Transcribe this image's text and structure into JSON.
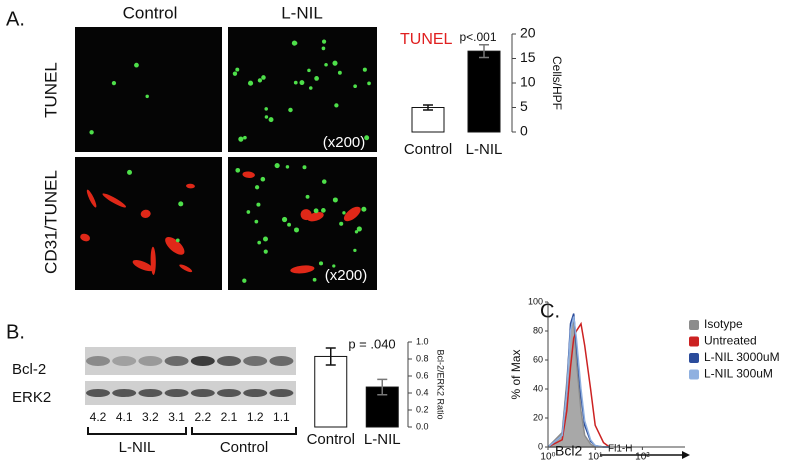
{
  "panel_a": {
    "label": "A.",
    "columns": [
      "Control",
      "L-NIL"
    ],
    "rows": [
      "TUNEL",
      "CD31/TUNEL"
    ],
    "magnification": "(x200)"
  },
  "panel_b": {
    "label": "B.",
    "rows": [
      "Bcl-2",
      "ERK2"
    ],
    "lanes": [
      "4.2",
      "4.1",
      "3.2",
      "3.1",
      "2.2",
      "2.1",
      "1.2",
      "1.1"
    ],
    "groups": [
      "L-NIL",
      "Control"
    ]
  },
  "panel_c": {
    "label": "C."
  },
  "chart_data": [
    {
      "type": "bar",
      "title": "TUNEL",
      "annotation": "p<.001",
      "ylabel": "Cells/HPF",
      "categories": [
        "Control",
        "L-NIL"
      ],
      "values": [
        5,
        16.5
      ],
      "errors": [
        0.5,
        1.3
      ],
      "colors": [
        "#ffffff",
        "#000000"
      ],
      "ylim": [
        0,
        20
      ],
      "yticks": [
        0,
        5,
        10,
        15,
        20
      ]
    },
    {
      "type": "bar",
      "annotation": "p = .040",
      "ylabel": "Bcl-2/ERK2 Ratio",
      "categories": [
        "Control",
        "L-NIL"
      ],
      "values": [
        0.83,
        0.47
      ],
      "errors": [
        0.1,
        0.09
      ],
      "colors": [
        "#ffffff",
        "#000000"
      ],
      "ylim": [
        0,
        1.0
      ],
      "yticks": [
        {
          "value": 0,
          "label": "0.0"
        },
        0.2,
        0.4,
        0.6,
        0.8,
        {
          "value": 1.0,
          "label": "1.0"
        }
      ]
    },
    {
      "type": "line",
      "ylabel": "% of Max",
      "x_name": "Bcl2",
      "xlabel": "Fl1-H",
      "xscale": "log",
      "xlim": [
        1,
        800
      ],
      "ylim": [
        0,
        100
      ],
      "xticks": [
        {
          "value": 1,
          "label": "10⁰"
        },
        {
          "value": 10,
          "label": "10¹"
        },
        {
          "value": 100,
          "label": "10²"
        }
      ],
      "yticks": [
        0,
        20,
        40,
        60,
        80,
        100
      ],
      "x": [
        1,
        2,
        2.5,
        3,
        3.5,
        4,
        5,
        6,
        8,
        10,
        15,
        20
      ],
      "series": [
        {
          "name": "Isotype",
          "color": "#8c8c8c",
          "fill": true,
          "values": [
            0,
            10,
            45,
            80,
            88,
            60,
            25,
            8,
            2,
            0,
            0,
            0
          ]
        },
        {
          "name": "Untreated",
          "color": "#cc2222",
          "fill": false,
          "values": [
            0,
            5,
            25,
            55,
            75,
            80,
            85,
            70,
            40,
            15,
            3,
            0
          ]
        },
        {
          "name": "L-NIL 3000uM",
          "color": "#2b4c9b",
          "fill": false,
          "values": [
            0,
            8,
            40,
            85,
            92,
            70,
            35,
            15,
            4,
            1,
            0,
            0
          ]
        },
        {
          "name": "L-NIL 300uM",
          "color": "#8fb0e0",
          "fill": false,
          "values": [
            0,
            8,
            38,
            80,
            90,
            75,
            40,
            18,
            5,
            1,
            0,
            0
          ]
        }
      ]
    }
  ]
}
